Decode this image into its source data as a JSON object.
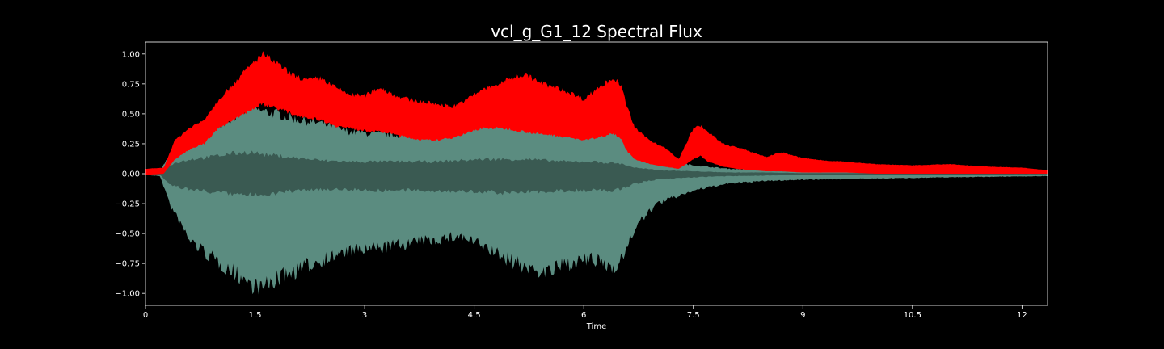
{
  "chart_data": {
    "type": "area",
    "title": "vcl_g_G1_12 Spectral Flux",
    "xlabel": "Time",
    "ylabel": "",
    "xlim": [
      0,
      12.35
    ],
    "ylim": [
      -1.1,
      1.1
    ],
    "x_ticks": [
      0,
      1.5,
      3,
      4.5,
      6,
      7.5,
      9,
      10.5,
      12
    ],
    "x_tick_labels": [
      "0",
      "1.5",
      "3",
      "4.5",
      "6",
      "7.5",
      "9",
      "10.5",
      "12"
    ],
    "y_ticks": [
      1.0,
      0.75,
      0.5,
      0.25,
      0.0,
      -0.25,
      -0.5,
      -0.75,
      -1.0
    ],
    "y_tick_labels": [
      "1.00",
      "0.75",
      "0.50",
      "0.25",
      "0.00",
      "−0.25",
      "−0.50",
      "−0.75",
      "−1.00"
    ],
    "grid": false,
    "colors": {
      "background": "#000000",
      "axes": "#ffffff",
      "flux": "#ff0000",
      "waveform_outer": "#5b8c80",
      "waveform_inner": "#3a5a52"
    },
    "series": [
      {
        "kind": "waveform_envelope",
        "x": [
          0,
          0.2,
          0.35,
          0.6,
          0.9,
          1.2,
          1.45,
          1.6,
          1.8,
          2.1,
          2.4,
          2.8,
          3.2,
          3.6,
          4.0,
          4.3,
          4.6,
          4.9,
          5.2,
          5.5,
          5.8,
          6.1,
          6.4,
          6.55,
          6.7,
          7.0,
          7.5,
          8.0,
          8.5,
          9.0,
          10.0,
          11.0,
          12.35
        ],
        "upper": [
          0.01,
          0.02,
          0.18,
          0.3,
          0.38,
          0.47,
          0.55,
          0.52,
          0.5,
          0.45,
          0.42,
          0.35,
          0.33,
          0.32,
          0.36,
          0.4,
          0.44,
          0.47,
          0.48,
          0.45,
          0.42,
          0.4,
          0.35,
          0.3,
          0.2,
          0.12,
          0.07,
          0.04,
          0.03,
          0.02,
          0.015,
          0.01,
          0.01
        ],
        "lower": [
          -0.01,
          -0.02,
          -0.28,
          -0.55,
          -0.7,
          -0.82,
          -0.92,
          -0.96,
          -0.88,
          -0.8,
          -0.72,
          -0.65,
          -0.62,
          -0.58,
          -0.55,
          -0.52,
          -0.6,
          -0.7,
          -0.78,
          -0.82,
          -0.75,
          -0.72,
          -0.78,
          -0.68,
          -0.45,
          -0.25,
          -0.14,
          -0.08,
          -0.06,
          -0.05,
          -0.04,
          -0.03,
          -0.02
        ],
        "inner_upper": [
          0.005,
          0.01,
          0.08,
          0.12,
          0.14,
          0.17,
          0.18,
          0.16,
          0.15,
          0.13,
          0.11,
          0.1,
          0.1,
          0.1,
          0.1,
          0.11,
          0.12,
          0.12,
          0.12,
          0.11,
          0.1,
          0.1,
          0.09,
          0.08,
          0.05,
          0.03,
          0.02,
          0.01,
          0.01,
          0.005,
          0.005,
          0.005,
          0.005
        ],
        "inner_lower": [
          -0.005,
          -0.01,
          -0.1,
          -0.13,
          -0.15,
          -0.17,
          -0.18,
          -0.17,
          -0.16,
          -0.14,
          -0.13,
          -0.13,
          -0.14,
          -0.14,
          -0.14,
          -0.15,
          -0.15,
          -0.16,
          -0.15,
          -0.15,
          -0.14,
          -0.14,
          -0.14,
          -0.12,
          -0.08,
          -0.05,
          -0.03,
          -0.02,
          -0.015,
          -0.01,
          -0.01,
          -0.01,
          -0.005
        ]
      },
      {
        "kind": "spectral_flux_band",
        "x": [
          0,
          0.25,
          0.4,
          0.6,
          0.8,
          1.0,
          1.2,
          1.4,
          1.6,
          1.8,
          2.0,
          2.2,
          2.4,
          2.6,
          2.8,
          3.0,
          3.2,
          3.4,
          3.6,
          3.8,
          4.0,
          4.2,
          4.4,
          4.6,
          4.8,
          5.0,
          5.2,
          5.4,
          5.6,
          5.8,
          6.0,
          6.2,
          6.4,
          6.5,
          6.6,
          6.7,
          6.9,
          7.1,
          7.3,
          7.5,
          7.6,
          7.7,
          7.9,
          8.1,
          8.3,
          8.5,
          8.7,
          9.0,
          9.3,
          9.6,
          10.0,
          10.5,
          11.0,
          11.5,
          12.0,
          12.35
        ],
        "upper": [
          0.04,
          0.05,
          0.28,
          0.38,
          0.45,
          0.62,
          0.75,
          0.88,
          1.0,
          0.92,
          0.83,
          0.78,
          0.8,
          0.72,
          0.66,
          0.65,
          0.72,
          0.66,
          0.62,
          0.6,
          0.58,
          0.56,
          0.62,
          0.7,
          0.74,
          0.8,
          0.83,
          0.76,
          0.72,
          0.68,
          0.62,
          0.72,
          0.8,
          0.75,
          0.55,
          0.38,
          0.28,
          0.22,
          0.12,
          0.38,
          0.4,
          0.35,
          0.25,
          0.22,
          0.18,
          0.14,
          0.18,
          0.13,
          0.11,
          0.1,
          0.08,
          0.07,
          0.08,
          0.06,
          0.05,
          0.03
        ],
        "lower": [
          -0.01,
          0.0,
          0.12,
          0.2,
          0.25,
          0.38,
          0.45,
          0.52,
          0.58,
          0.55,
          0.5,
          0.47,
          0.45,
          0.4,
          0.38,
          0.36,
          0.35,
          0.33,
          0.3,
          0.28,
          0.28,
          0.3,
          0.34,
          0.38,
          0.38,
          0.37,
          0.35,
          0.33,
          0.32,
          0.3,
          0.28,
          0.3,
          0.34,
          0.3,
          0.18,
          0.12,
          0.08,
          0.06,
          0.04,
          0.12,
          0.15,
          0.1,
          0.06,
          0.04,
          0.03,
          0.02,
          0.02,
          0.01,
          0.01,
          0.01,
          0.0,
          0.0,
          0.0,
          0.0,
          0.0,
          0.0
        ]
      }
    ]
  }
}
